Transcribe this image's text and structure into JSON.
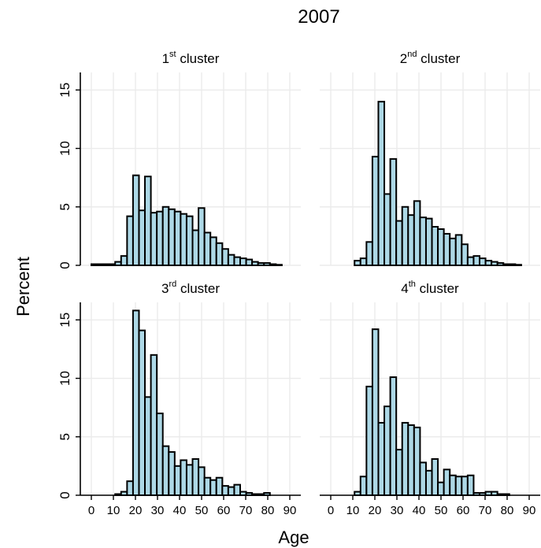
{
  "chart_data": {
    "type": "bar",
    "title": "2007",
    "xlabel": "Age",
    "ylabel": "Percent",
    "xlim": [
      -5,
      95
    ],
    "ylim": [
      0,
      16.5
    ],
    "xticks": [
      0,
      10,
      20,
      30,
      40,
      50,
      60,
      70,
      80,
      90
    ],
    "yticks": [
      0,
      5,
      10,
      15
    ],
    "grid": true,
    "bin_width": 2.7,
    "panels": [
      {
        "title_prefix": "1",
        "title_sup": "st",
        "title_suffix": " cluster",
        "bins": [
          [
            0,
            0.1
          ],
          [
            2.7,
            0.1
          ],
          [
            5.4,
            0.1
          ],
          [
            8.1,
            0.1
          ],
          [
            10.8,
            0.3
          ],
          [
            13.5,
            0.8
          ],
          [
            16.2,
            4.2
          ],
          [
            18.9,
            7.7
          ],
          [
            21.6,
            4.7
          ],
          [
            24.3,
            7.6
          ],
          [
            27.0,
            4.5
          ],
          [
            29.7,
            4.6
          ],
          [
            32.4,
            5.0
          ],
          [
            35.1,
            4.8
          ],
          [
            37.8,
            4.6
          ],
          [
            40.5,
            4.4
          ],
          [
            43.2,
            4.2
          ],
          [
            45.9,
            3.0
          ],
          [
            48.6,
            4.9
          ],
          [
            51.3,
            2.8
          ],
          [
            54.0,
            2.4
          ],
          [
            56.7,
            1.9
          ],
          [
            59.4,
            1.4
          ],
          [
            62.1,
            0.9
          ],
          [
            64.8,
            0.7
          ],
          [
            67.5,
            0.6
          ],
          [
            70.2,
            0.5
          ],
          [
            72.9,
            0.3
          ],
          [
            75.6,
            0.2
          ],
          [
            78.3,
            0.2
          ],
          [
            81.0,
            0.1
          ],
          [
            83.7,
            0.05
          ]
        ]
      },
      {
        "title_prefix": "2",
        "title_sup": "nd",
        "title_suffix": " cluster",
        "bins": [
          [
            10.8,
            0.4
          ],
          [
            13.5,
            0.6
          ],
          [
            16.2,
            2.0
          ],
          [
            18.9,
            9.3
          ],
          [
            21.6,
            14.0
          ],
          [
            24.3,
            6.1
          ],
          [
            27.0,
            9.1
          ],
          [
            29.7,
            3.8
          ],
          [
            32.4,
            5.0
          ],
          [
            35.1,
            4.3
          ],
          [
            37.8,
            5.5
          ],
          [
            40.5,
            4.1
          ],
          [
            43.2,
            4.0
          ],
          [
            45.9,
            3.3
          ],
          [
            48.6,
            3.1
          ],
          [
            51.3,
            2.7
          ],
          [
            54.0,
            2.3
          ],
          [
            56.7,
            2.6
          ],
          [
            59.4,
            1.8
          ],
          [
            62.1,
            0.7
          ],
          [
            64.8,
            0.8
          ],
          [
            67.5,
            0.6
          ],
          [
            70.2,
            0.4
          ],
          [
            72.9,
            0.3
          ],
          [
            75.6,
            0.2
          ],
          [
            78.3,
            0.1
          ],
          [
            81.0,
            0.1
          ],
          [
            83.7,
            0.05
          ]
        ]
      },
      {
        "title_prefix": "3",
        "title_sup": "rd",
        "title_suffix": " cluster",
        "bins": [
          [
            10.8,
            0.1
          ],
          [
            13.5,
            0.3
          ],
          [
            16.2,
            1.2
          ],
          [
            18.9,
            15.8
          ],
          [
            21.6,
            14.1
          ],
          [
            24.3,
            8.4
          ],
          [
            27.0,
            12.0
          ],
          [
            29.7,
            7.0
          ],
          [
            32.4,
            4.2
          ],
          [
            35.1,
            3.7
          ],
          [
            37.8,
            2.5
          ],
          [
            40.5,
            3.0
          ],
          [
            43.2,
            2.6
          ],
          [
            45.9,
            3.1
          ],
          [
            48.6,
            2.4
          ],
          [
            51.3,
            1.5
          ],
          [
            54.0,
            1.3
          ],
          [
            56.7,
            1.5
          ],
          [
            59.4,
            0.8
          ],
          [
            62.1,
            0.7
          ],
          [
            64.8,
            0.9
          ],
          [
            67.5,
            0.3
          ],
          [
            70.2,
            0.2
          ],
          [
            72.9,
            0.1
          ],
          [
            75.6,
            0.1
          ],
          [
            78.3,
            0.2
          ]
        ]
      },
      {
        "title_prefix": "4",
        "title_sup": "th",
        "title_suffix": " cluster",
        "bins": [
          [
            10.8,
            0.3
          ],
          [
            13.5,
            1.6
          ],
          [
            16.2,
            9.3
          ],
          [
            18.9,
            14.2
          ],
          [
            21.6,
            6.2
          ],
          [
            24.3,
            7.6
          ],
          [
            27.0,
            10.1
          ],
          [
            29.7,
            3.9
          ],
          [
            32.4,
            6.2
          ],
          [
            35.1,
            6.0
          ],
          [
            37.8,
            5.8
          ],
          [
            40.5,
            2.8
          ],
          [
            43.2,
            2.1
          ],
          [
            45.9,
            3.1
          ],
          [
            48.6,
            1.1
          ],
          [
            51.3,
            2.2
          ],
          [
            54.0,
            1.7
          ],
          [
            56.7,
            1.6
          ],
          [
            59.4,
            1.6
          ],
          [
            62.1,
            1.7
          ],
          [
            64.8,
            0.2
          ],
          [
            67.5,
            0.2
          ],
          [
            70.2,
            0.3
          ],
          [
            72.9,
            0.3
          ],
          [
            75.6,
            0.1
          ],
          [
            78.3,
            0.1
          ]
        ]
      }
    ]
  }
}
